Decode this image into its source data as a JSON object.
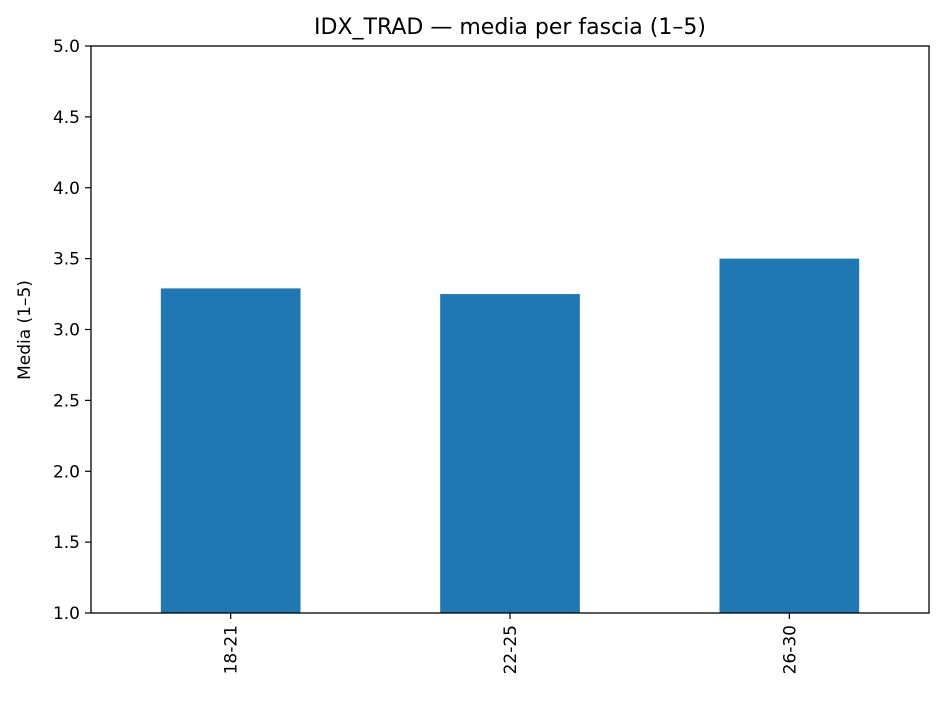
{
  "chart_data": {
    "type": "bar",
    "title": "IDX_TRAD — media per fascia (1–5)",
    "xlabel": "",
    "ylabel": "Media (1–5)",
    "categories": [
      "18-21",
      "22-25",
      "26-30"
    ],
    "values": [
      3.29,
      3.25,
      3.5
    ],
    "ylim": [
      1.0,
      5.0
    ],
    "yticks": [
      "1.0",
      "1.5",
      "2.0",
      "2.5",
      "3.0",
      "3.5",
      "4.0",
      "4.5",
      "5.0"
    ],
    "bar_color": "#1f77b4",
    "grid": false,
    "legend": null
  }
}
